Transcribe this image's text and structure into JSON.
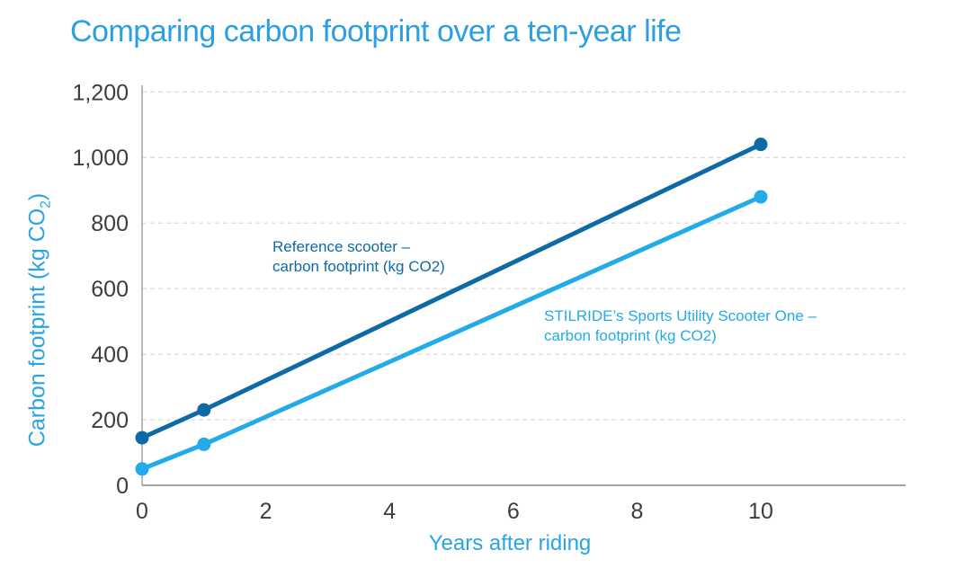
{
  "header": {
    "title": "Comparing carbon footprint over a ten-year life"
  },
  "colors": {
    "title_text": "#2B9FE3",
    "axis_title_text": "#29A4E4",
    "tick_text": "#3D3D3D",
    "axis_line": "#A2A2A2",
    "gridline": "#D8D8D8",
    "background": "#FFFFFF",
    "reference_series": "#0E6AA6",
    "stilride_series": "#23AAE8"
  },
  "chart_data": {
    "type": "line",
    "title": "Comparing carbon footprint over a ten-year life",
    "xlabel": "Years after riding",
    "ylabel": "Carbon footprint (kg CO2)",
    "ylabel_rich": {
      "prefix": "Carbon footprint (kg CO",
      "subscript": "2",
      "suffix": ")"
    },
    "x_ticks": [
      "0",
      "2",
      "4",
      "6",
      "8",
      "10"
    ],
    "x_tick_values": [
      0,
      2,
      4,
      6,
      8,
      10
    ],
    "y_ticks": [
      "0",
      "200",
      "400",
      "600",
      "800",
      "1,000",
      "1,200"
    ],
    "xlim": [
      0,
      12.34
    ],
    "ylim": [
      0,
      1220
    ],
    "grid": "horizontal dashed gridlines",
    "legend_position": "inline annotations next to lines",
    "series": [
      {
        "name": "Reference scooter – carbon footprint (kg CO2)",
        "annotation_line1": "Reference scooter –",
        "annotation_line2": "carbon footprint (kg CO2)",
        "color": "#0E6AA6",
        "x": [
          0,
          1,
          10
        ],
        "values": [
          145,
          230,
          1040
        ]
      },
      {
        "name": "STILRIDE’s Sports Utility Scooter One – carbon footprint (kg CO2)",
        "annotation_line1": "STILRIDE’s Sports Utility Scooter One –",
        "annotation_line2": "carbon footprint (kg CO2)",
        "color": "#23AAE8",
        "x": [
          0,
          1,
          10
        ],
        "values": [
          50,
          125,
          880
        ]
      }
    ]
  }
}
